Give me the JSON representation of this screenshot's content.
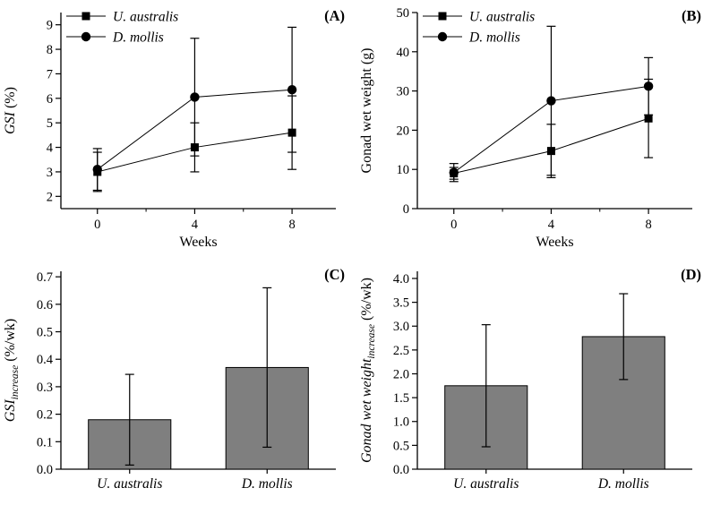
{
  "figure": {
    "background": "#ffffff",
    "colors": {
      "axis": "#000000",
      "marker": "#000000",
      "line": "#000000",
      "bar_fill": "#7f7f7f",
      "text": "#000000"
    }
  },
  "chart_data": [
    {
      "type": "line",
      "panel_label": "(A)",
      "xlabel": "Weeks",
      "ylabel": "GSI (%)",
      "ylabel_parts": [
        {
          "t": "GSI",
          "i": true
        },
        {
          "t": " (%)"
        }
      ],
      "x": [
        0,
        4,
        8
      ],
      "xtick_labels": [
        "0",
        "4",
        "8"
      ],
      "xticks_minor": [
        2,
        6
      ],
      "xlim": [
        -1.5,
        9.8
      ],
      "ylim": [
        1.5,
        9.5
      ],
      "yticks": [
        2,
        3,
        4,
        5,
        6,
        7,
        8,
        9
      ],
      "ytick_labels": [
        "2",
        "3",
        "4",
        "5",
        "6",
        "7",
        "8",
        "9"
      ],
      "legend_position": "top-left",
      "series": [
        {
          "name": "U. australis",
          "marker": "square",
          "values": [
            3.0,
            4.0,
            4.6
          ],
          "err": [
            0.8,
            1.0,
            1.5
          ]
        },
        {
          "name": "D. mollis",
          "marker": "circle",
          "values": [
            3.1,
            6.05,
            6.35
          ],
          "err": [
            0.85,
            2.4,
            2.55
          ]
        }
      ]
    },
    {
      "type": "line",
      "panel_label": "(B)",
      "xlabel": "Weeks",
      "ylabel": "Gonad wet weight (g)",
      "ylabel_parts": [
        {
          "t": "Gonad wet weight (g)"
        }
      ],
      "x": [
        0,
        4,
        8
      ],
      "xtick_labels": [
        "0",
        "4",
        "8"
      ],
      "xticks_minor": [
        2,
        6
      ],
      "xlim": [
        -1.5,
        9.8
      ],
      "ylim": [
        0,
        50
      ],
      "yticks": [
        0,
        10,
        20,
        30,
        40,
        50
      ],
      "ytick_labels": [
        "0",
        "10",
        "20",
        "30",
        "40",
        "50"
      ],
      "legend_position": "top-left",
      "series": [
        {
          "name": "U. australis",
          "marker": "square",
          "values": [
            9.0,
            14.7,
            23.0
          ],
          "err": [
            1.5,
            6.8,
            10.0
          ]
        },
        {
          "name": "D. mollis",
          "marker": "circle",
          "values": [
            9.2,
            27.5,
            31.2
          ],
          "err": [
            2.3,
            19.0,
            7.3
          ]
        }
      ]
    },
    {
      "type": "bar",
      "panel_label": "(C)",
      "ylabel": "GSI_increase (%/wk)",
      "ylabel_parts": [
        {
          "t": "GSI",
          "i": true
        },
        {
          "t": "increase",
          "i": true,
          "s": true
        },
        {
          "t": " (%/wk)"
        }
      ],
      "categories": [
        "U. australis",
        "D. mollis"
      ],
      "values": [
        0.18,
        0.37
      ],
      "err": [
        0.165,
        0.29
      ],
      "bar_width": 0.6,
      "ylim": [
        0,
        0.72
      ],
      "yticks": [
        0,
        0.1,
        0.2,
        0.3,
        0.4,
        0.5,
        0.6,
        0.7
      ],
      "ytick_labels": [
        "0.0",
        "0.1",
        "0.2",
        "0.3",
        "0.4",
        "0.5",
        "0.6",
        "0.7"
      ]
    },
    {
      "type": "bar",
      "panel_label": "(D)",
      "ylabel": "Gonad wet weight_increase (%/wk)",
      "ylabel_parts": [
        {
          "t": "Gonad wet weight",
          "i": true
        },
        {
          "t": "increase",
          "i": true,
          "s": true
        },
        {
          "t": " (%/wk)"
        }
      ],
      "categories": [
        "U. australis",
        "D. mollis"
      ],
      "values": [
        1.75,
        2.78
      ],
      "err": [
        1.28,
        0.9
      ],
      "bar_width": 0.6,
      "ylim": [
        0,
        4.15
      ],
      "yticks": [
        0,
        0.5,
        1.0,
        1.5,
        2.0,
        2.5,
        3.0,
        3.5,
        4.0
      ],
      "ytick_labels": [
        "0.0",
        "0.5",
        "1.0",
        "1.5",
        "2.0",
        "2.5",
        "3.0",
        "3.5",
        "4.0"
      ]
    }
  ]
}
